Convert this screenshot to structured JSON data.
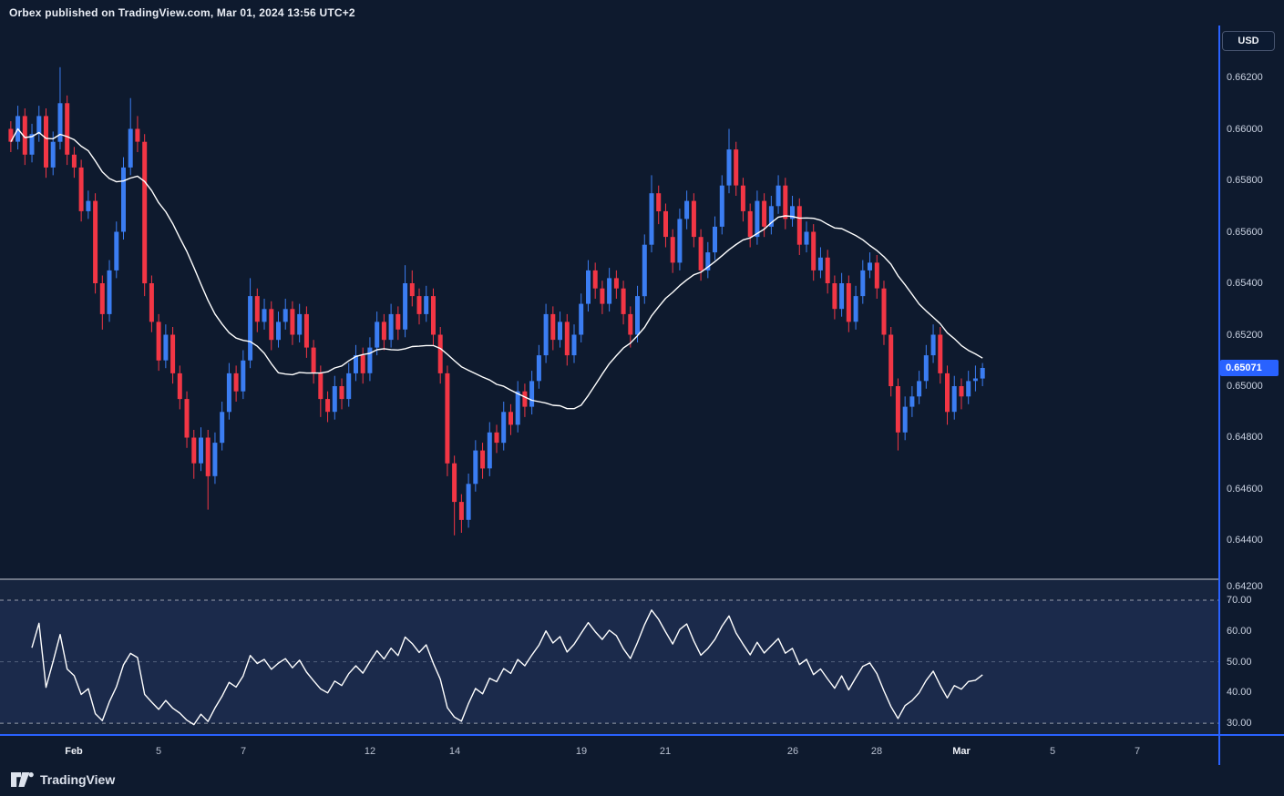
{
  "header": {
    "title": "Orbex published on TradingView.com, Mar 01, 2024 13:56 UTC+2"
  },
  "axis": {
    "currency": "USD",
    "last_price": "0.65071"
  },
  "footer": {
    "brand": "TradingView"
  },
  "colors": {
    "background": "#0e1a2e",
    "pane_rsi": "#17253f",
    "band_rsi": "rgba(79,112,247,0.07)",
    "up": "#3b7df2",
    "down": "#f23645",
    "ma_line": "#ffffff",
    "rsi_line": "#ffffff",
    "accent": "#2962ff",
    "divider": "#cfd3dc",
    "level_strong": "rgba(255,255,255,0.55)",
    "level_mid": "rgba(150,162,184,0.45)"
  },
  "chart_data": {
    "type": "candlestick",
    "last_price": 0.65071,
    "price_ticks": [
      0.662,
      0.66,
      0.658,
      0.656,
      0.654,
      0.652,
      0.65,
      0.648,
      0.646,
      0.644,
      0.642
    ],
    "price_ylim": [
      0.64253,
      0.66402
    ],
    "total_slots": 172,
    "overlays": [
      {
        "name": "moving-average",
        "type": "line",
        "period": 20
      }
    ],
    "indicator": {
      "name": "RSI",
      "type": "line",
      "period": 14,
      "ticks": [
        70,
        60,
        50,
        40,
        30
      ],
      "ylim": [
        26.5,
        76.5
      ],
      "levels": {
        "upper": 70,
        "middle": 50,
        "lower": 30
      }
    },
    "x_labels": [
      {
        "label": "Feb",
        "index": 9,
        "major": true
      },
      {
        "label": "5",
        "index": 21,
        "major": false
      },
      {
        "label": "7",
        "index": 33,
        "major": false
      },
      {
        "label": "12",
        "index": 51,
        "major": false
      },
      {
        "label": "14",
        "index": 63,
        "major": false
      },
      {
        "label": "19",
        "index": 81,
        "major": false
      },
      {
        "label": "21",
        "index": 93,
        "major": false
      },
      {
        "label": "26",
        "index": 111,
        "major": false
      },
      {
        "label": "28",
        "index": 123,
        "major": false
      },
      {
        "label": "Mar",
        "index": 135,
        "major": true
      },
      {
        "label": "5",
        "index": 148,
        "major": false
      },
      {
        "label": "7",
        "index": 160,
        "major": false
      }
    ],
    "candles": [
      [
        0.66,
        0.6603,
        0.6591,
        0.6595
      ],
      [
        0.6595,
        0.6609,
        0.6592,
        0.6605
      ],
      [
        0.6605,
        0.6608,
        0.6586,
        0.659
      ],
      [
        0.659,
        0.6602,
        0.6587,
        0.6598
      ],
      [
        0.6598,
        0.6609,
        0.6595,
        0.6605
      ],
      [
        0.6605,
        0.6608,
        0.6581,
        0.6585
      ],
      [
        0.6585,
        0.6599,
        0.6582,
        0.6595
      ],
      [
        0.6595,
        0.6624,
        0.6592,
        0.661
      ],
      [
        0.661,
        0.6613,
        0.6586,
        0.659
      ],
      [
        0.659,
        0.6593,
        0.6581,
        0.6585
      ],
      [
        0.6585,
        0.6588,
        0.6564,
        0.6568
      ],
      [
        0.6568,
        0.6576,
        0.6565,
        0.6572
      ],
      [
        0.6572,
        0.6575,
        0.6536,
        0.654
      ],
      [
        0.654,
        0.6543,
        0.6522,
        0.6528
      ],
      [
        0.6528,
        0.6549,
        0.6525,
        0.6545
      ],
      [
        0.6545,
        0.6564,
        0.6542,
        0.656
      ],
      [
        0.656,
        0.6589,
        0.6557,
        0.6585
      ],
      [
        0.6585,
        0.6612,
        0.6582,
        0.66
      ],
      [
        0.66,
        0.6605,
        0.6591,
        0.6595
      ],
      [
        0.6595,
        0.6598,
        0.6535,
        0.654
      ],
      [
        0.654,
        0.6543,
        0.6521,
        0.6525
      ],
      [
        0.6525,
        0.6528,
        0.6506,
        0.651
      ],
      [
        0.651,
        0.6524,
        0.6507,
        0.652
      ],
      [
        0.652,
        0.6523,
        0.6501,
        0.6505
      ],
      [
        0.6505,
        0.6508,
        0.6491,
        0.6495
      ],
      [
        0.6495,
        0.6498,
        0.6476,
        0.648
      ],
      [
        0.648,
        0.6483,
        0.6464,
        0.647
      ],
      [
        0.647,
        0.6484,
        0.6467,
        0.648
      ],
      [
        0.648,
        0.6483,
        0.6452,
        0.6465
      ],
      [
        0.6465,
        0.6482,
        0.6462,
        0.6478
      ],
      [
        0.6478,
        0.6494,
        0.6475,
        0.649
      ],
      [
        0.649,
        0.6509,
        0.6487,
        0.6505
      ],
      [
        0.6505,
        0.6508,
        0.6494,
        0.6498
      ],
      [
        0.6498,
        0.6514,
        0.6495,
        0.651
      ],
      [
        0.651,
        0.6542,
        0.6507,
        0.6535
      ],
      [
        0.6535,
        0.6538,
        0.6521,
        0.6525
      ],
      [
        0.6525,
        0.6534,
        0.6522,
        0.653
      ],
      [
        0.653,
        0.6533,
        0.6514,
        0.6518
      ],
      [
        0.6518,
        0.6529,
        0.6515,
        0.6525
      ],
      [
        0.6525,
        0.6534,
        0.6522,
        0.653
      ],
      [
        0.653,
        0.6533,
        0.6516,
        0.652
      ],
      [
        0.652,
        0.6532,
        0.6517,
        0.6528
      ],
      [
        0.6528,
        0.6531,
        0.6511,
        0.6515
      ],
      [
        0.6515,
        0.6518,
        0.6501,
        0.6505
      ],
      [
        0.6505,
        0.6508,
        0.6488,
        0.6495
      ],
      [
        0.6495,
        0.6498,
        0.6486,
        0.649
      ],
      [
        0.649,
        0.6504,
        0.6487,
        0.65
      ],
      [
        0.65,
        0.6503,
        0.6491,
        0.6495
      ],
      [
        0.6495,
        0.6509,
        0.6492,
        0.6505
      ],
      [
        0.6505,
        0.6516,
        0.6502,
        0.6512
      ],
      [
        0.6512,
        0.6515,
        0.6501,
        0.6505
      ],
      [
        0.6505,
        0.6519,
        0.6502,
        0.6515
      ],
      [
        0.6515,
        0.6529,
        0.6512,
        0.6525
      ],
      [
        0.6525,
        0.6528,
        0.6514,
        0.6518
      ],
      [
        0.6518,
        0.6532,
        0.6515,
        0.6528
      ],
      [
        0.6528,
        0.6531,
        0.6518,
        0.6522
      ],
      [
        0.6522,
        0.6547,
        0.6519,
        0.654
      ],
      [
        0.654,
        0.6545,
        0.6531,
        0.6535
      ],
      [
        0.6535,
        0.6538,
        0.6524,
        0.6528
      ],
      [
        0.6528,
        0.6539,
        0.6525,
        0.6535
      ],
      [
        0.6535,
        0.6538,
        0.6516,
        0.652
      ],
      [
        0.652,
        0.6523,
        0.6501,
        0.6505
      ],
      [
        0.6505,
        0.6508,
        0.6465,
        0.647
      ],
      [
        0.647,
        0.6473,
        0.6442,
        0.6455
      ],
      [
        0.6455,
        0.6458,
        0.6443,
        0.6448
      ],
      [
        0.6448,
        0.6466,
        0.6445,
        0.6462
      ],
      [
        0.6462,
        0.6479,
        0.6459,
        0.6475
      ],
      [
        0.6475,
        0.6478,
        0.6464,
        0.6468
      ],
      [
        0.6468,
        0.6486,
        0.6465,
        0.6482
      ],
      [
        0.6482,
        0.6485,
        0.6474,
        0.6478
      ],
      [
        0.6478,
        0.6494,
        0.6475,
        0.649
      ],
      [
        0.649,
        0.6493,
        0.6481,
        0.6485
      ],
      [
        0.6485,
        0.6502,
        0.6482,
        0.6498
      ],
      [
        0.6498,
        0.6501,
        0.6488,
        0.6492
      ],
      [
        0.6492,
        0.6506,
        0.6489,
        0.6502
      ],
      [
        0.6502,
        0.6516,
        0.6499,
        0.6512
      ],
      [
        0.6512,
        0.6532,
        0.6509,
        0.6528
      ],
      [
        0.6528,
        0.6531,
        0.6514,
        0.6518
      ],
      [
        0.6518,
        0.6529,
        0.6515,
        0.6525
      ],
      [
        0.6525,
        0.6528,
        0.6508,
        0.6512
      ],
      [
        0.6512,
        0.6524,
        0.6509,
        0.652
      ],
      [
        0.652,
        0.6536,
        0.6517,
        0.6532
      ],
      [
        0.6532,
        0.6549,
        0.6529,
        0.6545
      ],
      [
        0.6545,
        0.6548,
        0.6534,
        0.6538
      ],
      [
        0.6538,
        0.6541,
        0.6528,
        0.6532
      ],
      [
        0.6532,
        0.6546,
        0.6529,
        0.6542
      ],
      [
        0.6542,
        0.6545,
        0.6534,
        0.6538
      ],
      [
        0.6538,
        0.6541,
        0.6524,
        0.6528
      ],
      [
        0.6528,
        0.6531,
        0.6515,
        0.652
      ],
      [
        0.652,
        0.6539,
        0.6517,
        0.6535
      ],
      [
        0.6535,
        0.6559,
        0.6532,
        0.6555
      ],
      [
        0.6555,
        0.6582,
        0.6552,
        0.6575
      ],
      [
        0.6575,
        0.6578,
        0.6563,
        0.6568
      ],
      [
        0.6568,
        0.6571,
        0.6554,
        0.6558
      ],
      [
        0.6558,
        0.6561,
        0.6544,
        0.6548
      ],
      [
        0.6548,
        0.6569,
        0.6545,
        0.6565
      ],
      [
        0.6565,
        0.6576,
        0.6561,
        0.6572
      ],
      [
        0.6572,
        0.6575,
        0.6554,
        0.6558
      ],
      [
        0.6558,
        0.6561,
        0.6541,
        0.6545
      ],
      [
        0.6545,
        0.6556,
        0.6542,
        0.6552
      ],
      [
        0.6552,
        0.6566,
        0.6549,
        0.6562
      ],
      [
        0.6562,
        0.6582,
        0.6559,
        0.6578
      ],
      [
        0.6578,
        0.66,
        0.6575,
        0.6592
      ],
      [
        0.6592,
        0.6595,
        0.6574,
        0.6578
      ],
      [
        0.6578,
        0.6581,
        0.6564,
        0.6568
      ],
      [
        0.6568,
        0.6571,
        0.6554,
        0.6558
      ],
      [
        0.6558,
        0.6576,
        0.6555,
        0.6572
      ],
      [
        0.6572,
        0.6575,
        0.6558,
        0.6562
      ],
      [
        0.6562,
        0.6574,
        0.6559,
        0.657
      ],
      [
        0.657,
        0.6582,
        0.6567,
        0.6578
      ],
      [
        0.6578,
        0.6581,
        0.6561,
        0.6565
      ],
      [
        0.6565,
        0.6574,
        0.6562,
        0.657
      ],
      [
        0.657,
        0.6573,
        0.6551,
        0.6555
      ],
      [
        0.6555,
        0.6564,
        0.6552,
        0.656
      ],
      [
        0.656,
        0.6563,
        0.6541,
        0.6545
      ],
      [
        0.6545,
        0.6554,
        0.6542,
        0.655
      ],
      [
        0.655,
        0.6553,
        0.6536,
        0.654
      ],
      [
        0.654,
        0.6543,
        0.6526,
        0.653
      ],
      [
        0.653,
        0.6544,
        0.6527,
        0.654
      ],
      [
        0.654,
        0.6543,
        0.6521,
        0.6525
      ],
      [
        0.6525,
        0.6539,
        0.6522,
        0.6535
      ],
      [
        0.6535,
        0.6549,
        0.6532,
        0.6545
      ],
      [
        0.6545,
        0.6552,
        0.6542,
        0.6548
      ],
      [
        0.6548,
        0.6551,
        0.6534,
        0.6538
      ],
      [
        0.6538,
        0.6541,
        0.6516,
        0.652
      ],
      [
        0.652,
        0.6523,
        0.6496,
        0.65
      ],
      [
        0.65,
        0.6503,
        0.6475,
        0.6482
      ],
      [
        0.6482,
        0.6496,
        0.6479,
        0.6492
      ],
      [
        0.6492,
        0.65,
        0.6488,
        0.6496
      ],
      [
        0.6496,
        0.6506,
        0.6493,
        0.6502
      ],
      [
        0.6502,
        0.6516,
        0.6499,
        0.6512
      ],
      [
        0.6512,
        0.6524,
        0.6509,
        0.652
      ],
      [
        0.652,
        0.6523,
        0.6501,
        0.6505
      ],
      [
        0.6505,
        0.6508,
        0.6485,
        0.649
      ],
      [
        0.649,
        0.6504,
        0.6487,
        0.65
      ],
      [
        0.65,
        0.6503,
        0.6491,
        0.6496
      ],
      [
        0.6496,
        0.6506,
        0.6493,
        0.6502
      ],
      [
        0.6502,
        0.6508,
        0.6498,
        0.6503
      ],
      [
        0.6503,
        0.6509,
        0.65,
        0.65071
      ]
    ]
  }
}
